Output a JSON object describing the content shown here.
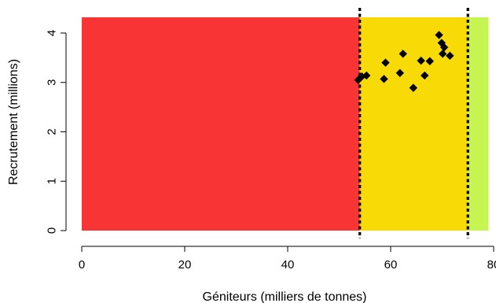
{
  "chart_data": {
    "type": "scatter",
    "title": "",
    "xlabel": "Géniteurs (milliers de tonnes)",
    "ylabel": "Recrutement (millions)",
    "xlim": [
      0,
      80
    ],
    "ylim": [
      0,
      4.35
    ],
    "x_ticks": [
      0,
      20,
      40,
      60,
      80
    ],
    "y_ticks": [
      0,
      1,
      2,
      3,
      4
    ],
    "x_tick_labels": [
      "0",
      "20",
      "40",
      "60",
      "80"
    ],
    "y_tick_labels": [
      "0",
      "1",
      "2",
      "3",
      "4"
    ],
    "grid": false,
    "legend": "none",
    "zones": [
      {
        "x_start": 0,
        "x_end": 54,
        "color": "#f93434"
      },
      {
        "x_start": 54,
        "x_end": 75,
        "color": "#f8da06"
      },
      {
        "x_start": 75,
        "x_end": 79,
        "color": "#c6f552"
      }
    ],
    "reference_lines": [
      {
        "x": 54,
        "style": "dotted",
        "color": "#000000"
      },
      {
        "x": 75,
        "style": "dotted",
        "color": "#000000"
      }
    ],
    "points": [
      {
        "x": 53.7,
        "y": 3.05
      },
      {
        "x": 54.4,
        "y": 3.12
      },
      {
        "x": 55.3,
        "y": 3.14
      },
      {
        "x": 58.7,
        "y": 3.07
      },
      {
        "x": 59.0,
        "y": 3.4
      },
      {
        "x": 61.8,
        "y": 3.19
      },
      {
        "x": 62.4,
        "y": 3.58
      },
      {
        "x": 64.4,
        "y": 2.89
      },
      {
        "x": 65.9,
        "y": 3.44
      },
      {
        "x": 66.6,
        "y": 3.14
      },
      {
        "x": 67.6,
        "y": 3.43
      },
      {
        "x": 69.4,
        "y": 3.96
      },
      {
        "x": 69.9,
        "y": 3.8
      },
      {
        "x": 70.1,
        "y": 3.58
      },
      {
        "x": 70.4,
        "y": 3.71
      },
      {
        "x": 71.5,
        "y": 3.54
      }
    ],
    "marker": "diamond",
    "marker_color": "#000000"
  }
}
